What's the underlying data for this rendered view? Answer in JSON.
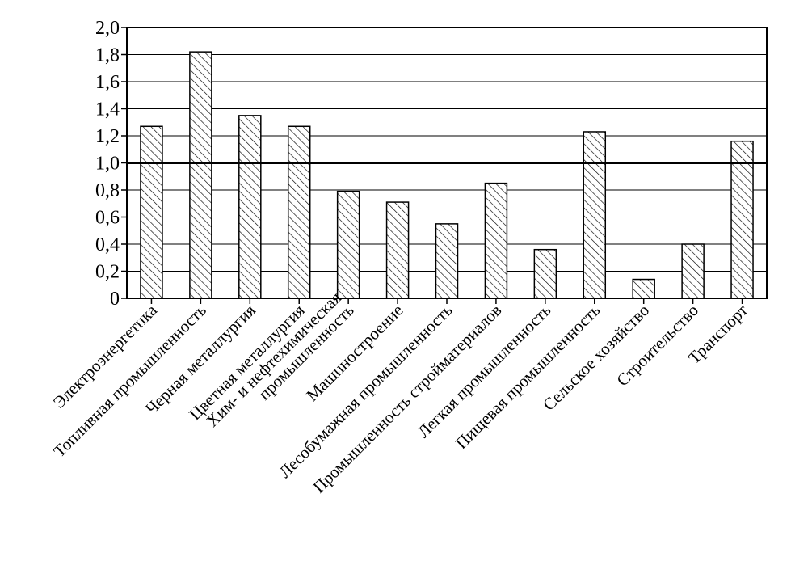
{
  "chart_data": {
    "type": "bar",
    "title": "",
    "xlabel": "",
    "ylabel": "",
    "ylim": [
      0,
      2.0
    ],
    "grid": true,
    "reference_line": 1.0,
    "bar_fill": "diagonal-hatch",
    "ytick_values": [
      0,
      0.2,
      0.4,
      0.6,
      0.8,
      1.0,
      1.2,
      1.4,
      1.6,
      1.8,
      2.0
    ],
    "ytick_labels": [
      "0",
      "0,2",
      "0,4",
      "0,6",
      "0,8",
      "1,0",
      "1,2",
      "1,4",
      "1,6",
      "1,8",
      "2,0"
    ],
    "categories": [
      [
        "Электроэнергетика"
      ],
      [
        "Топливная промышленность"
      ],
      [
        "Черная металлургия"
      ],
      [
        "Цветная металлургия"
      ],
      [
        "Хим- и нефтехимическая",
        "промышленность"
      ],
      [
        "Машиностроение"
      ],
      [
        "Лесобумажная промышленность"
      ],
      [
        "Промышленность стройматериалов"
      ],
      [
        "Легкая промышленность"
      ],
      [
        "Пищевая промышленность"
      ],
      [
        "Сельское хозяйство"
      ],
      [
        "Строительство"
      ],
      [
        "Транспорт"
      ]
    ],
    "values": [
      1.27,
      1.82,
      1.35,
      1.27,
      0.79,
      0.71,
      0.55,
      0.85,
      0.36,
      1.23,
      0.14,
      0.4,
      1.16
    ],
    "colors": {
      "bar_stroke": "#000000",
      "hatch": "#000000",
      "grid": "#000000",
      "background": "#ffffff"
    }
  }
}
